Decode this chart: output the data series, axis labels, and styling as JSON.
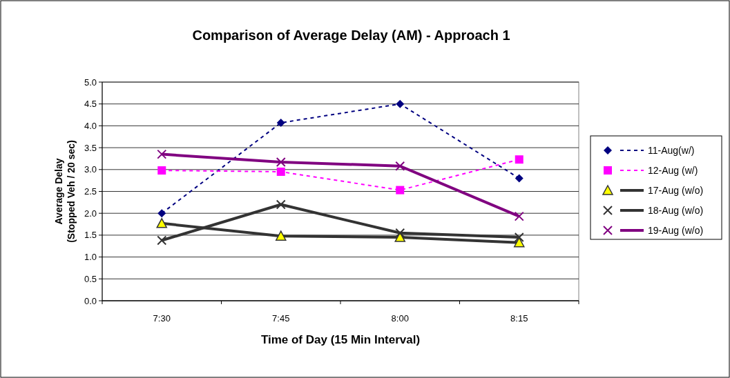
{
  "chart_data": {
    "type": "line",
    "title": "Comparison of Average Delay (AM) - Approach 1",
    "xlabel": "Time of Day (15 Min Interval)",
    "ylabel": "Average Delay\n(Stopped Veh / 20 sec)",
    "categories": [
      "7:30",
      "7:45",
      "8:00",
      "8:15"
    ],
    "ylim": [
      0,
      5
    ],
    "yticks": [
      {
        "value": 0,
        "label": "0.0"
      },
      {
        "value": 0.5,
        "label": "0.5"
      },
      {
        "value": 1,
        "label": "1.0"
      },
      {
        "value": 1.5,
        "label": "1.5"
      },
      {
        "value": 2,
        "label": "2.0"
      },
      {
        "value": 2.5,
        "label": "2.5"
      },
      {
        "value": 3,
        "label": "3.0"
      },
      {
        "value": 3.5,
        "label": "3.5"
      },
      {
        "value": 4,
        "label": "4.0"
      },
      {
        "value": 4.5,
        "label": "4.5"
      },
      {
        "value": 5,
        "label": "5.0"
      }
    ],
    "grid": "y",
    "legend": "right",
    "series": [
      {
        "name": "11-Aug(w/)",
        "color": "#000080",
        "marker": "diamond",
        "line_style": "dashed",
        "values": [
          2.0,
          4.07,
          4.5,
          2.8
        ]
      },
      {
        "name": "12-Aug (w/)",
        "color": "#ff00ff",
        "marker": "square",
        "line_style": "dashed",
        "values": [
          2.98,
          2.95,
          2.53,
          3.23
        ]
      },
      {
        "name": "17-Aug (w/o)",
        "color": "#333333",
        "marker": "triangle",
        "line_style": "solid",
        "values": [
          1.77,
          1.48,
          1.45,
          1.33
        ]
      },
      {
        "name": "18-Aug (w/o)",
        "color": "#333333",
        "marker": "cross",
        "line_style": "solid",
        "values": [
          1.38,
          2.2,
          1.55,
          1.45
        ]
      },
      {
        "name": "19-Aug (w/o)",
        "color": "#800080",
        "marker": "cross",
        "line_style": "solid",
        "values": [
          3.35,
          3.17,
          3.08,
          1.93
        ]
      }
    ]
  }
}
